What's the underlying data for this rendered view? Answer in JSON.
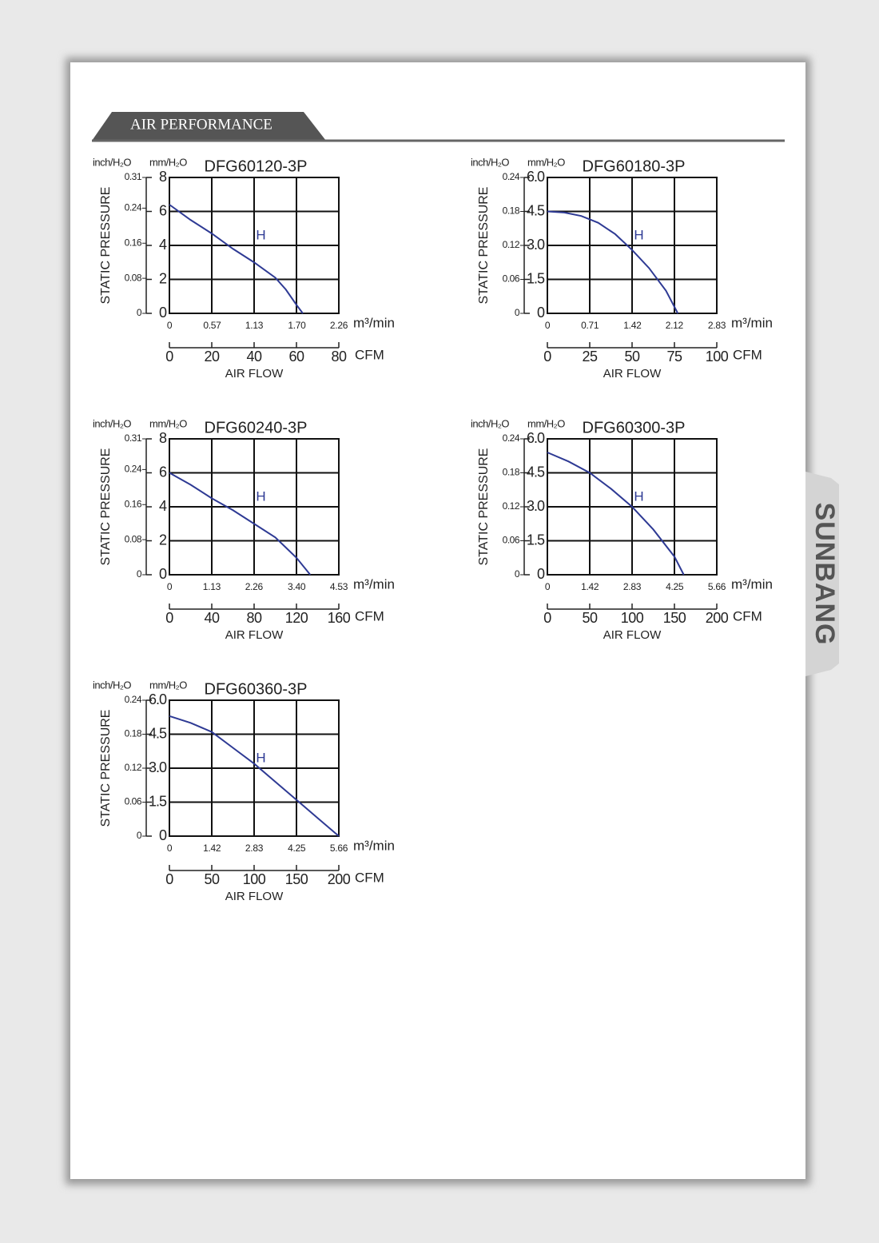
{
  "header": {
    "title": "AIR PERFORMANCE"
  },
  "brand": "SUNBANG",
  "chart_data": [
    {
      "type": "line",
      "title": "DFG60120-3P",
      "ylabel": "STATIC PRESSURE",
      "y_unit": "mm/H₂O",
      "y2_unit": "inch/H₂O",
      "xlabel": "AIR FLOW",
      "x_unit": "CFM",
      "x2_unit": "m³/min",
      "xlim": [
        0,
        80
      ],
      "xticks": [
        0,
        20,
        40,
        60,
        80
      ],
      "x2lim": [
        0,
        2.26
      ],
      "x2ticks": [
        0,
        0.57,
        1.13,
        {
          "value": 1.7,
          "label": "1.70"
        },
        2.26
      ],
      "ylim": [
        0,
        8
      ],
      "yticks": [
        0,
        2,
        4,
        6,
        8
      ],
      "y2lim": [
        0,
        0.31
      ],
      "y2ticks": [
        0,
        0.08,
        0.16,
        0.24,
        0.31
      ],
      "grid": true,
      "series": [
        {
          "name": "H",
          "color": "#2e3a94",
          "x": [
            0,
            10,
            20,
            30,
            40,
            50,
            55,
            60,
            63
          ],
          "values": [
            6.4,
            5.5,
            4.7,
            3.8,
            3.0,
            2.1,
            1.4,
            0.5,
            0
          ]
        }
      ]
    },
    {
      "type": "line",
      "title": "DFG60180-3P",
      "ylabel": "STATIC PRESSURE",
      "y_unit": "mm/H₂O",
      "y2_unit": "inch/H₂O",
      "xlabel": "AIR FLOW",
      "x_unit": "CFM",
      "x2_unit": "m³/min",
      "xlim": [
        0,
        100
      ],
      "xticks": [
        0,
        25,
        50,
        75,
        100
      ],
      "x2lim": [
        0,
        2.83
      ],
      "x2ticks": [
        0,
        0.71,
        1.42,
        2.12,
        2.83
      ],
      "ylim": [
        0,
        6
      ],
      "yticks": [
        0,
        1.5,
        {
          "value": 3,
          "label": "3.0"
        },
        4.5,
        {
          "value": 6,
          "label": "6.0"
        }
      ],
      "y2lim": [
        0,
        0.24
      ],
      "y2ticks": [
        0,
        0.06,
        0.12,
        0.18,
        0.24
      ],
      "grid": true,
      "series": [
        {
          "name": "H",
          "color": "#2e3a94",
          "x": [
            0,
            10,
            20,
            30,
            40,
            50,
            60,
            70,
            77
          ],
          "values": [
            4.5,
            4.45,
            4.3,
            4.0,
            3.5,
            2.8,
            2.0,
            1.0,
            0
          ]
        }
      ]
    },
    {
      "type": "line",
      "title": "DFG60240-3P",
      "ylabel": "STATIC PRESSURE",
      "y_unit": "mm/H₂O",
      "y2_unit": "inch/H₂O",
      "xlabel": "AIR FLOW",
      "x_unit": "CFM",
      "x2_unit": "m³/min",
      "xlim": [
        0,
        160
      ],
      "xticks": [
        0,
        40,
        80,
        120,
        160
      ],
      "x2lim": [
        0,
        4.53
      ],
      "x2ticks": [
        0,
        1.13,
        2.26,
        {
          "value": 3.4,
          "label": "3.40"
        },
        4.53
      ],
      "ylim": [
        0,
        8
      ],
      "yticks": [
        0,
        2,
        4,
        6,
        8
      ],
      "y2lim": [
        0,
        0.31
      ],
      "y2ticks": [
        0,
        0.08,
        0.16,
        0.24,
        0.31
      ],
      "grid": true,
      "series": [
        {
          "name": "H",
          "color": "#2e3a94",
          "x": [
            0,
            20,
            40,
            60,
            80,
            100,
            110,
            120,
            133
          ],
          "values": [
            6.0,
            5.3,
            4.5,
            3.8,
            3.0,
            2.2,
            1.6,
            1.0,
            0
          ]
        }
      ]
    },
    {
      "type": "line",
      "title": "DFG60300-3P",
      "ylabel": "STATIC PRESSURE",
      "y_unit": "mm/H₂O",
      "y2_unit": "inch/H₂O",
      "xlabel": "AIR FLOW",
      "x_unit": "CFM",
      "x2_unit": "m³/min",
      "xlim": [
        0,
        200
      ],
      "xticks": [
        0,
        50,
        100,
        150,
        200
      ],
      "x2lim": [
        0,
        5.66
      ],
      "x2ticks": [
        0,
        1.42,
        2.83,
        4.25,
        5.66
      ],
      "ylim": [
        0,
        6
      ],
      "yticks": [
        0,
        1.5,
        {
          "value": 3,
          "label": "3.0"
        },
        4.5,
        {
          "value": 6,
          "label": "6.0"
        }
      ],
      "y2lim": [
        0,
        0.24
      ],
      "y2ticks": [
        0,
        0.06,
        0.12,
        0.18,
        0.24
      ],
      "grid": true,
      "series": [
        {
          "name": "H",
          "color": "#2e3a94",
          "x": [
            0,
            25,
            50,
            75,
            100,
            125,
            150,
            161
          ],
          "values": [
            5.4,
            5.0,
            4.5,
            3.8,
            3.0,
            2.0,
            0.8,
            0
          ]
        }
      ]
    },
    {
      "type": "line",
      "title": "DFG60360-3P",
      "ylabel": "STATIC PRESSURE",
      "y_unit": "mm/H₂O",
      "y2_unit": "inch/H₂O",
      "xlabel": "AIR FLOW",
      "x_unit": "CFM",
      "x2_unit": "m³/min",
      "xlim": [
        0,
        200
      ],
      "xticks": [
        0,
        50,
        100,
        150,
        200
      ],
      "x2lim": [
        0,
        5.66
      ],
      "x2ticks": [
        0,
        1.42,
        2.83,
        4.25,
        5.66
      ],
      "ylim": [
        0,
        6
      ],
      "yticks": [
        0,
        1.5,
        {
          "value": 3,
          "label": "3.0"
        },
        4.5,
        {
          "value": 6,
          "label": "6.0"
        }
      ],
      "y2lim": [
        0,
        0.24
      ],
      "y2ticks": [
        0,
        0.06,
        0.12,
        0.18,
        0.24
      ],
      "grid": true,
      "series": [
        {
          "name": "H",
          "color": "#2e3a94",
          "x": [
            0,
            25,
            50,
            75,
            100,
            125,
            150,
            175,
            200
          ],
          "values": [
            5.3,
            5.0,
            4.6,
            3.9,
            3.2,
            2.4,
            1.6,
            0.8,
            0
          ]
        }
      ]
    }
  ]
}
